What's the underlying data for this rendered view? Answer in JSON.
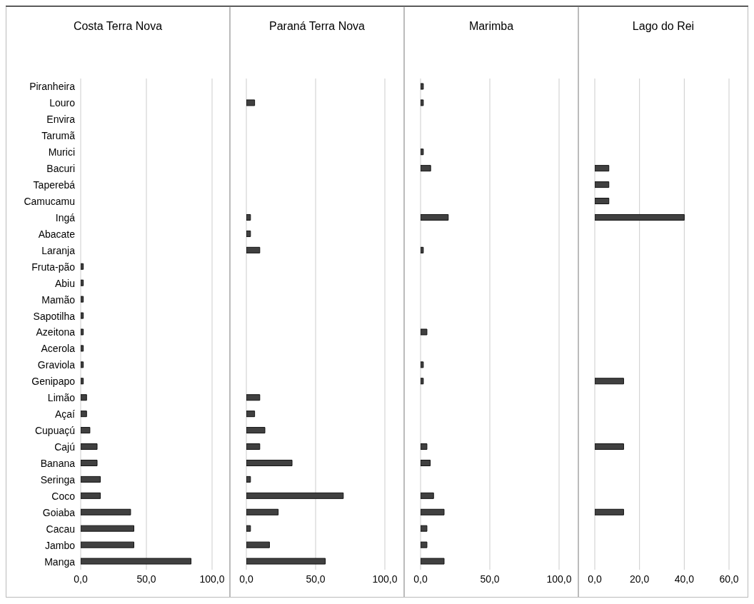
{
  "chart_data": [
    {
      "type": "bar",
      "orientation": "horizontal",
      "title": "Costa Terra Nova",
      "categories": [
        "Piranheira",
        "Louro",
        "Envira",
        "Tarumã",
        "Murici",
        "Bacuri",
        "Taperebá",
        "Camucamu",
        "Ingá",
        "Abacate",
        "Laranja",
        "Fruta-pão",
        "Abiu",
        "Mamão",
        "Sapotilha",
        "Azeitona",
        "Acerola",
        "Graviola",
        "Genipapo",
        "Limão",
        "Açaí",
        "Cupuaçú",
        "Cajú",
        "Banana",
        "Seringa",
        "Coco",
        "Goiaba",
        "Cacau",
        "Jambo",
        "Manga"
      ],
      "values": [
        null,
        null,
        null,
        null,
        null,
        null,
        null,
        null,
        null,
        null,
        null,
        2,
        2,
        2,
        2,
        2,
        2,
        2,
        2,
        4.5,
        4.5,
        7,
        12.5,
        12.5,
        15,
        15,
        38,
        40.5,
        40.5,
        84
      ],
      "color": "#404040",
      "xlim": [
        0,
        100
      ],
      "xticks": [
        {
          "value": 0,
          "label": "0,0"
        },
        {
          "value": 50,
          "label": "50,0"
        },
        {
          "value": 100,
          "label": "100,0"
        }
      ],
      "grid": "x"
    },
    {
      "type": "bar",
      "orientation": "horizontal",
      "title": "Paraná Terra Nova",
      "categories": [
        null,
        null,
        null,
        null,
        null,
        null,
        null,
        null,
        null,
        null,
        null,
        null,
        null,
        null,
        null,
        null,
        null,
        null,
        null,
        null,
        null,
        null,
        null,
        null,
        null,
        null,
        null,
        null,
        null,
        null
      ],
      "values": [
        null,
        6,
        null,
        null,
        null,
        null,
        null,
        null,
        3,
        3,
        9.7,
        null,
        null,
        null,
        null,
        null,
        null,
        null,
        null,
        9.7,
        6,
        13.4,
        9.7,
        33,
        3,
        70,
        23,
        3,
        16.7,
        57
      ],
      "color": "#404040",
      "xlim": [
        0,
        100
      ],
      "xticks": [
        {
          "value": 0,
          "label": "0,0"
        },
        {
          "value": 50,
          "label": "50,0"
        },
        {
          "value": 100,
          "label": "100,0"
        }
      ],
      "grid": "x",
      "tick_labels": "x"
    },
    {
      "type": "bar",
      "orientation": "horizontal",
      "title": "Marimba",
      "categories": [
        null,
        null,
        null,
        null,
        null,
        null,
        null,
        null,
        null,
        null,
        null,
        null,
        null,
        null,
        null,
        null,
        null,
        null,
        null,
        null,
        null,
        null,
        null,
        null,
        null,
        null,
        null,
        null,
        null,
        null
      ],
      "values": [
        2,
        2,
        null,
        null,
        2,
        7.3,
        null,
        null,
        20,
        null,
        2,
        null,
        null,
        null,
        null,
        4.6,
        null,
        2,
        2,
        null,
        null,
        null,
        4.6,
        7,
        null,
        9.4,
        17,
        4.6,
        4.6,
        17
      ],
      "color": "#404040",
      "xlim": [
        0,
        100
      ],
      "xticks": [
        {
          "value": 0,
          "label": "0,0"
        },
        {
          "value": 50,
          "label": "50,0"
        },
        {
          "value": 100,
          "label": "100,0"
        }
      ],
      "grid": "x",
      "tick_labels": "x"
    },
    {
      "type": "bar",
      "orientation": "horizontal",
      "title": "Lago do Rei",
      "categories": [
        null,
        null,
        null,
        null,
        null,
        null,
        null,
        null,
        null,
        null,
        null,
        null,
        null,
        null,
        null,
        null,
        null,
        null,
        null,
        null,
        null,
        null,
        null,
        null,
        null,
        null,
        null,
        null,
        null,
        null
      ],
      "values": [
        null,
        null,
        null,
        null,
        null,
        6.3,
        6.3,
        6.3,
        40,
        null,
        null,
        null,
        null,
        null,
        null,
        null,
        null,
        null,
        12.9,
        null,
        null,
        null,
        12.9,
        null,
        null,
        null,
        12.9,
        null,
        null,
        null
      ],
      "color": "#404040",
      "xlim": [
        0,
        60
      ],
      "xticks": [
        {
          "value": 0,
          "label": "0,0"
        },
        {
          "value": 20,
          "label": "20,0"
        },
        {
          "value": 40,
          "label": "40,0"
        },
        {
          "value": 60,
          "label": "60,0"
        }
      ],
      "grid": "x",
      "tick_labels": "x"
    }
  ]
}
